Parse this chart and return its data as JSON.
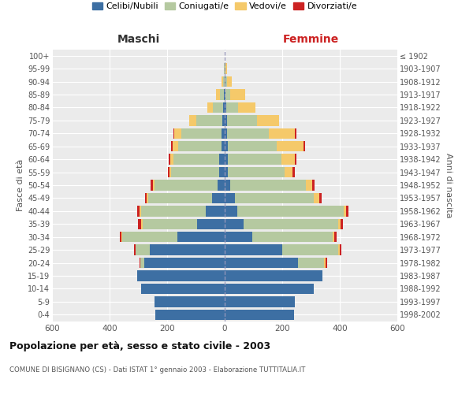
{
  "age_groups": [
    "0-4",
    "5-9",
    "10-14",
    "15-19",
    "20-24",
    "25-29",
    "30-34",
    "35-39",
    "40-44",
    "45-49",
    "50-54",
    "55-59",
    "60-64",
    "65-69",
    "70-74",
    "75-79",
    "80-84",
    "85-89",
    "90-94",
    "95-99",
    "100+"
  ],
  "birth_years": [
    "1998-2002",
    "1993-1997",
    "1988-1992",
    "1983-1987",
    "1978-1982",
    "1973-1977",
    "1968-1972",
    "1963-1967",
    "1958-1962",
    "1953-1957",
    "1948-1952",
    "1943-1947",
    "1938-1942",
    "1933-1937",
    "1928-1932",
    "1923-1927",
    "1918-1922",
    "1913-1917",
    "1908-1912",
    "1903-1907",
    "≤ 1902"
  ],
  "maschi_celibi": [
    240,
    245,
    290,
    305,
    280,
    260,
    165,
    95,
    65,
    45,
    25,
    20,
    18,
    12,
    12,
    8,
    5,
    2,
    0,
    0,
    0
  ],
  "maschi_coniugati": [
    0,
    0,
    0,
    0,
    12,
    50,
    190,
    190,
    225,
    220,
    220,
    165,
    160,
    150,
    140,
    90,
    35,
    15,
    5,
    2,
    0
  ],
  "maschi_vedovi": [
    0,
    0,
    0,
    0,
    0,
    0,
    5,
    5,
    5,
    5,
    5,
    8,
    12,
    18,
    22,
    25,
    20,
    12,
    5,
    0,
    0
  ],
  "maschi_divorziati": [
    0,
    0,
    0,
    0,
    5,
    5,
    5,
    10,
    10,
    8,
    8,
    5,
    5,
    5,
    5,
    0,
    0,
    0,
    0,
    0,
    0
  ],
  "femmine_nubili": [
    240,
    245,
    310,
    340,
    255,
    200,
    95,
    65,
    45,
    35,
    18,
    12,
    12,
    12,
    8,
    8,
    5,
    2,
    2,
    0,
    0
  ],
  "femmine_coniugate": [
    0,
    0,
    0,
    0,
    90,
    195,
    280,
    330,
    370,
    275,
    265,
    195,
    185,
    168,
    145,
    105,
    42,
    18,
    5,
    2,
    0
  ],
  "femmine_vedove": [
    0,
    0,
    0,
    0,
    5,
    5,
    5,
    8,
    8,
    18,
    22,
    28,
    48,
    95,
    90,
    75,
    60,
    50,
    18,
    5,
    0
  ],
  "femmine_divorziate": [
    0,
    0,
    0,
    0,
    5,
    5,
    8,
    8,
    8,
    10,
    8,
    8,
    5,
    5,
    5,
    0,
    0,
    0,
    0,
    0,
    0
  ],
  "colors_celibi": "#3d6fa3",
  "colors_coniugati": "#b5c9a0",
  "colors_vedovi": "#f5c96a",
  "colors_divorziati": "#cc2222",
  "legend_labels": [
    "Celibi/Nubili",
    "Coniugati/e",
    "Vedovi/e",
    "Divorziati/e"
  ],
  "title": "Popolazione per età, sesso e stato civile - 2003",
  "subtitle": "COMUNE DI BISIGNANO (CS) - Dati ISTAT 1° gennaio 2003 - Elaborazione TUTTITALIA.IT",
  "label_maschi": "Maschi",
  "label_femmine": "Femmine",
  "label_fasce": "Fasce di età",
  "label_anni": "Anni di nascita",
  "xlim": 600,
  "bg_color": "#ebebeb",
  "bar_height": 0.82
}
